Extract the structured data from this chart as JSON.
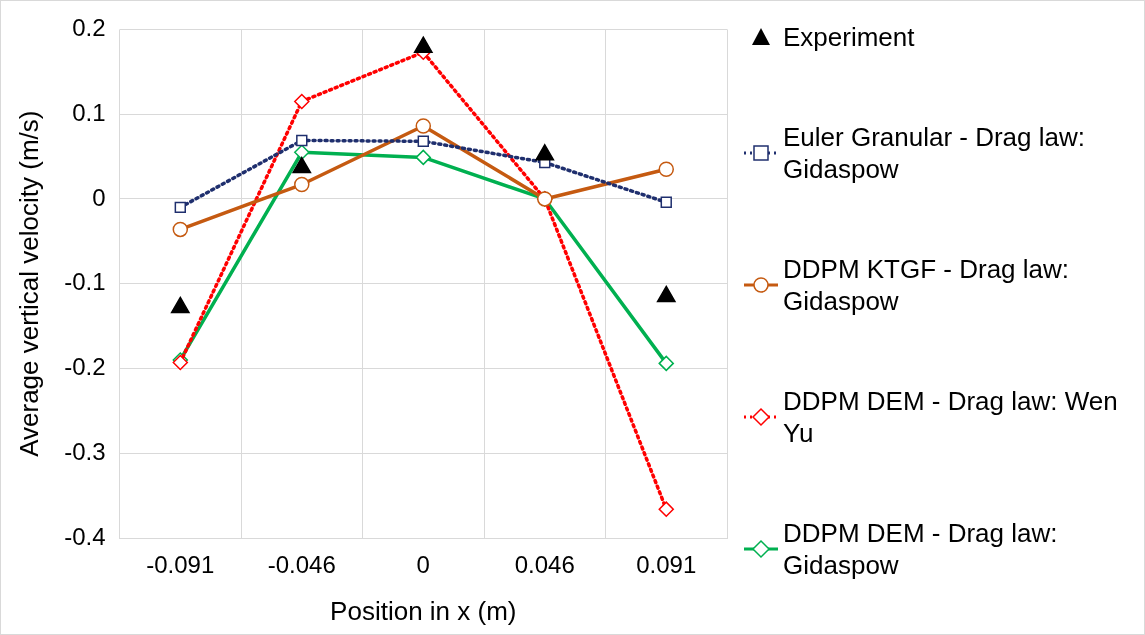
{
  "chart_data": {
    "type": "line",
    "xlabel": "Position in x (m)",
    "ylabel": "Average vertical velocity (m/s)",
    "categories": [
      "-0.091",
      "-0.046",
      "0",
      "0.046",
      "0.091"
    ],
    "series": [
      {
        "name": "Experiment",
        "type": "scatter",
        "color": "#000000",
        "marker": "triangle",
        "values": [
          -0.128,
          0.037,
          0.179,
          0.052,
          -0.115
        ]
      },
      {
        "name": "Euler Granular - Drag law: Gidaspow",
        "color": "#1f2f6e",
        "marker": "square",
        "line_style": "dotted",
        "values": [
          -0.01,
          0.069,
          0.068,
          0.043,
          -0.004
        ]
      },
      {
        "name": "DDPM KTGF - Drag law: Gidaspow",
        "color": "#c55a11",
        "marker": "circle",
        "line_style": "solid",
        "values": [
          -0.036,
          0.017,
          0.086,
          0,
          0.035
        ]
      },
      {
        "name": "DDPM DEM - Drag law: Wen Yu",
        "color": "#ff0000",
        "marker": "diamond",
        "line_style": "dotted",
        "values": [
          -0.193,
          0.115,
          0.173,
          0,
          -0.366
        ]
      },
      {
        "name": "DDPM DEM - Drag law: Gidaspow",
        "color": "#00b050",
        "marker": "diamond",
        "line_style": "solid",
        "values": [
          -0.19,
          0.055,
          0.049,
          0,
          -0.194
        ]
      }
    ],
    "ylim": [
      -0.4,
      0.2
    ],
    "yticks": [
      -0.4,
      -0.3,
      -0.2,
      -0.1,
      0,
      0.1,
      0.2
    ],
    "grid": true,
    "legend": "right"
  }
}
